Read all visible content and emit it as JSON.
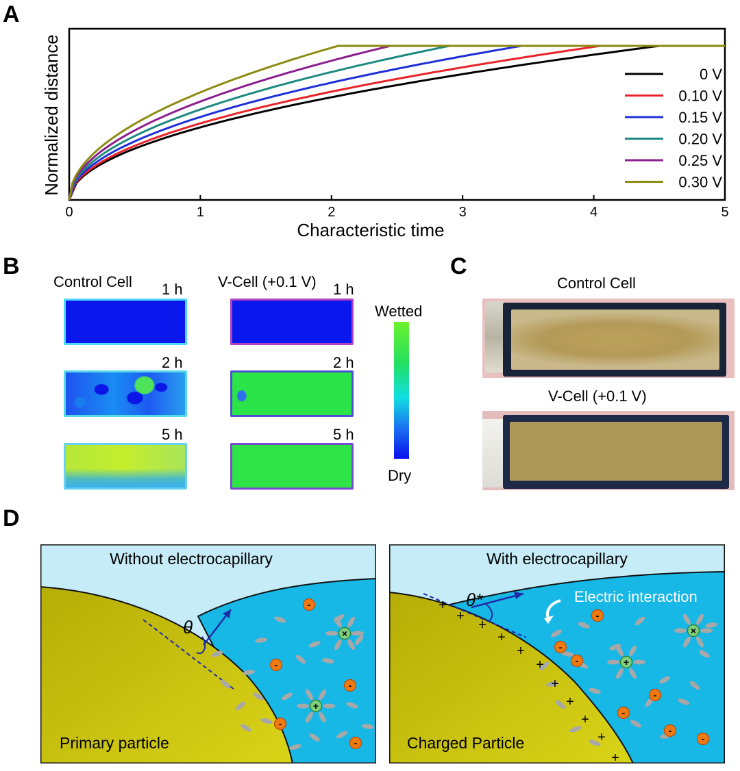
{
  "panels": {
    "a": {
      "letter": "A",
      "chart_data": {
        "type": "line",
        "xlabel": "Characteristic time",
        "ylabel": "Normalized distance",
        "xlim": [
          0,
          5
        ],
        "ylim": [
          0,
          1
        ],
        "x_ticks": [
          "0",
          "1",
          "2",
          "3",
          "4",
          "5"
        ],
        "legend_position": "right",
        "grid": false,
        "series": [
          {
            "name": "0 V",
            "color": "#000000",
            "saturation_time": 4.5
          },
          {
            "name": "0.10 V",
            "color": "#e8232a",
            "saturation_time": 4.05
          },
          {
            "name": "0.15 V",
            "color": "#1f2fd8",
            "saturation_time": 3.45
          },
          {
            "name": "0.20 V",
            "color": "#1c8a80",
            "saturation_time": 2.9
          },
          {
            "name": "0.25 V",
            "color": "#8c1e8e",
            "saturation_time": 2.45
          },
          {
            "name": "0.30 V",
            "color": "#8c8a10",
            "saturation_time": 2.05
          }
        ]
      }
    },
    "b": {
      "letter": "B",
      "control_title": "Control Cell",
      "vcell_title": "V-Cell (+0.1 V)",
      "times": [
        "1 h",
        "2 h",
        "5 h"
      ],
      "scale_top": "Wetted",
      "scale_bottom": "Dry"
    },
    "c": {
      "letter": "C",
      "control_title": "Control Cell",
      "vcell_title": "V-Cell (+0.1 V)"
    },
    "d": {
      "letter": "D",
      "left": {
        "title": "Without electrocapillary",
        "angle": "θ",
        "particle": "Primary particle"
      },
      "right": {
        "title": "With electrocapillary",
        "angle": "θ*",
        "interaction": "Electric interaction",
        "particle": "Charged Particle"
      },
      "ion_symbols": {
        "minus": "-",
        "plus": "+",
        "cross": "×"
      }
    }
  },
  "colors": {
    "wetted": "#22e022",
    "dry": "#0a12ee",
    "liquid": "#17b7e6",
    "sky": "#c6ecf8",
    "particle": "#c2bd08",
    "anion": "#f07a12"
  }
}
